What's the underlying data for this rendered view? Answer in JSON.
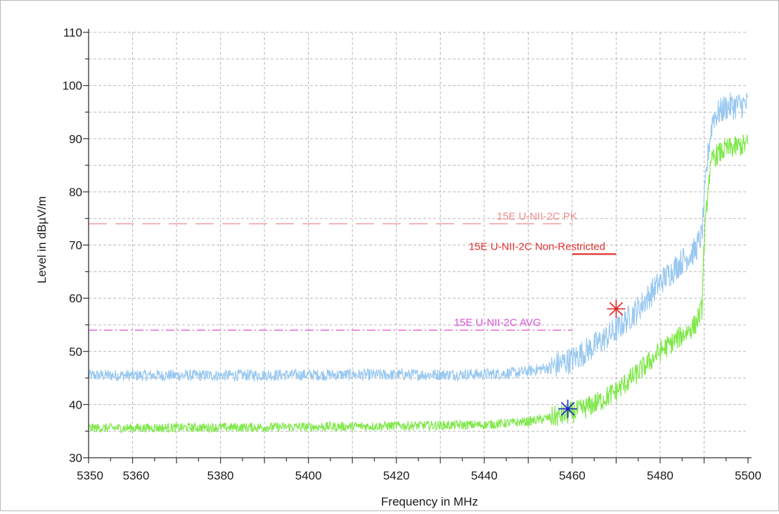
{
  "chart_data": {
    "type": "line",
    "title": "",
    "xlabel": "Frequency in MHz",
    "ylabel": "Level in dBµV/m",
    "xlim": [
      5350,
      5500
    ],
    "ylim": [
      30,
      110
    ],
    "x_ticks": [
      5350,
      5360,
      5380,
      5400,
      5420,
      5440,
      5460,
      5480,
      5500
    ],
    "y_ticks": [
      30,
      40,
      50,
      60,
      70,
      80,
      90,
      100,
      110
    ],
    "grid": true,
    "series": [
      {
        "color": "#98c8f0",
        "x": [
          5350,
          5360,
          5380,
          5400,
          5420,
          5440,
          5448,
          5455,
          5460,
          5465,
          5470,
          5475,
          5480,
          5485,
          5488,
          5489.5,
          5490,
          5491,
          5492,
          5495,
          5500
        ],
        "values": [
          45.5,
          45.5,
          45.5,
          45.6,
          45.6,
          45.7,
          46,
          47,
          48.5,
          51,
          54,
          58,
          63,
          67,
          69,
          72,
          78,
          88,
          94,
          96,
          96.5
        ]
      },
      {
        "color": "#7fe84a",
        "x": [
          5350,
          5360,
          5380,
          5400,
          5420,
          5440,
          5450,
          5458,
          5462,
          5466,
          5470,
          5475,
          5480,
          5485,
          5488,
          5489.5,
          5490,
          5491,
          5492,
          5495,
          5500
        ],
        "values": [
          35.6,
          35.6,
          35.7,
          35.8,
          36,
          36.2,
          36.8,
          38,
          39,
          40.5,
          42.5,
          46,
          50,
          53,
          55,
          58,
          70,
          82,
          86.5,
          88,
          89
        ]
      }
    ],
    "limit_lines": [
      {
        "name": "15E U-NII-2C PK",
        "value": 74,
        "x_range": [
          5350,
          5460
        ],
        "color": "#f08a8a",
        "style": "dashed"
      },
      {
        "name": "15E U-NII-2C AVG",
        "value": 54,
        "x_range": [
          5350,
          5460
        ],
        "color": "#d84fd8",
        "style": "dashdot"
      },
      {
        "name": "15E U-NII-2C Non-Restricted",
        "value": 68.3,
        "x_range": [
          5460,
          5470
        ],
        "color": "#e03030",
        "style": "solid"
      }
    ],
    "markers": [
      {
        "x": 5470,
        "y": 58,
        "color": "#e02020"
      },
      {
        "x": 5459,
        "y": 39.2,
        "color": "#2020d0"
      }
    ]
  }
}
